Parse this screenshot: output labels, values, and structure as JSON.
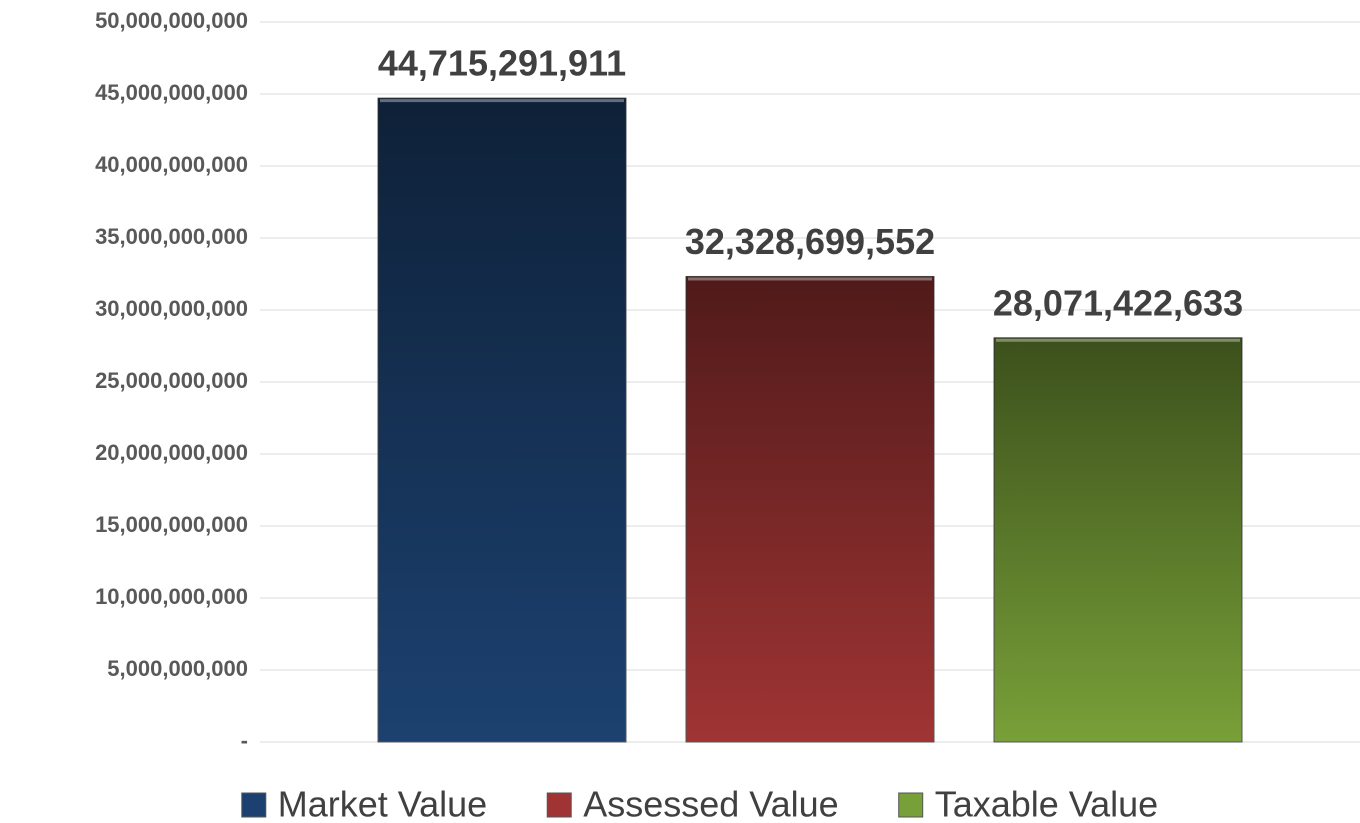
{
  "chart_data": {
    "type": "bar",
    "categories": [
      null
    ],
    "series": [
      {
        "name": "Market Value",
        "color": "#1c4170",
        "values": [
          44715291911
        ],
        "value_labels": [
          "44,715,291,911"
        ]
      },
      {
        "name": "Assessed Value",
        "color": "#a03434",
        "values": [
          32328699552
        ],
        "value_labels": [
          "32,328,699,552"
        ]
      },
      {
        "name": "Taxable Value",
        "color": "#78a038",
        "values": [
          28071422633
        ],
        "value_labels": [
          "28,071,422,633"
        ]
      }
    ],
    "ylim": [
      0,
      50000000000
    ],
    "yticks": [
      {
        "value": 0,
        "label": "-"
      },
      {
        "value": 5000000000,
        "label": "5,000,000,000"
      },
      {
        "value": 10000000000,
        "label": "10,000,000,000"
      },
      {
        "value": 15000000000,
        "label": "15,000,000,000"
      },
      {
        "value": 20000000000,
        "label": "20,000,000,000"
      },
      {
        "value": 25000000000,
        "label": "25,000,000,000"
      },
      {
        "value": 30000000000,
        "label": "30,000,000,000"
      },
      {
        "value": 35000000000,
        "label": "35,000,000,000"
      },
      {
        "value": 40000000000,
        "label": "40,000,000,000"
      },
      {
        "value": 45000000000,
        "label": "45,000,000,000"
      },
      {
        "value": 50000000000,
        "label": "50,000,000,000"
      }
    ],
    "grid": true,
    "legend": "bottom"
  }
}
